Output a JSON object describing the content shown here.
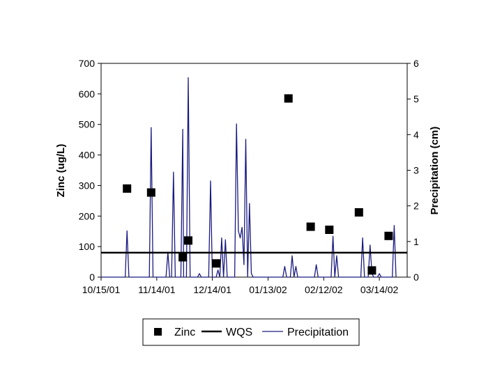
{
  "chart_data": {
    "type": "combo",
    "title": "",
    "x_axis": {
      "type": "date",
      "tick_labels": [
        "10/15/01",
        "11/14/01",
        "12/14/01",
        "01/13/02",
        "02/12/02",
        "03/14/02"
      ],
      "tick_days": [
        0,
        30,
        60,
        90,
        120,
        150
      ],
      "range_days": [
        0,
        165
      ]
    },
    "y_left": {
      "label": "Zinc (ug/L)",
      "min": 0,
      "max": 700,
      "step": 100,
      "ticks": [
        "0",
        "100",
        "200",
        "300",
        "400",
        "500",
        "600",
        "700"
      ]
    },
    "y_right": {
      "label": "Precipitation (cm)",
      "min": 0,
      "max": 6,
      "step": 1,
      "ticks": [
        "0",
        "1",
        "2",
        "3",
        "4",
        "5",
        "6"
      ]
    },
    "series": [
      {
        "name": "Zinc",
        "type": "scatter",
        "axis": "left",
        "color": "#000000",
        "marker": "square",
        "points": [
          [
            14,
            290
          ],
          [
            27,
            277
          ],
          [
            44,
            65
          ],
          [
            47,
            120
          ],
          [
            62,
            45
          ],
          [
            101,
            585
          ],
          [
            113,
            165
          ],
          [
            123,
            155
          ],
          [
            139,
            212
          ],
          [
            146,
            22
          ],
          [
            155,
            135
          ]
        ]
      },
      {
        "name": "WQS",
        "type": "hline",
        "axis": "left",
        "color": "#000000",
        "value": 80
      },
      {
        "name": "Precipitation",
        "type": "line",
        "axis": "right",
        "color": "#1a1a80",
        "points": [
          [
            0,
            0
          ],
          [
            13,
            0
          ],
          [
            14,
            1.3
          ],
          [
            15,
            0
          ],
          [
            26,
            0
          ],
          [
            27,
            4.2
          ],
          [
            28,
            0
          ],
          [
            35,
            0
          ],
          [
            36,
            0.7
          ],
          [
            37,
            0
          ],
          [
            38,
            0
          ],
          [
            39,
            2.95
          ],
          [
            40,
            0
          ],
          [
            43,
            0
          ],
          [
            44,
            4.15
          ],
          [
            44.5,
            0
          ],
          [
            46,
            0
          ],
          [
            47,
            5.6
          ],
          [
            48,
            0
          ],
          [
            52,
            0
          ],
          [
            53,
            0.1
          ],
          [
            54,
            0
          ],
          [
            58,
            0
          ],
          [
            59,
            2.7
          ],
          [
            60,
            0
          ],
          [
            62,
            0
          ],
          [
            63,
            0.2
          ],
          [
            64,
            0
          ],
          [
            65,
            1.1
          ],
          [
            66,
            0
          ],
          [
            67,
            1.05
          ],
          [
            68,
            0
          ],
          [
            72,
            0
          ],
          [
            73,
            4.3
          ],
          [
            74,
            1.3
          ],
          [
            75,
            1.1
          ],
          [
            76,
            1.4
          ],
          [
            77,
            0.35
          ],
          [
            78,
            3.87
          ],
          [
            79,
            0
          ],
          [
            80,
            2.07
          ],
          [
            81,
            0.1
          ],
          [
            82,
            0
          ],
          [
            98,
            0
          ],
          [
            99,
            0.3
          ],
          [
            100,
            0
          ],
          [
            102,
            0
          ],
          [
            103,
            0.6
          ],
          [
            104,
            0
          ],
          [
            105,
            0.3
          ],
          [
            106,
            0
          ],
          [
            115,
            0
          ],
          [
            116,
            0.35
          ],
          [
            117,
            0
          ],
          [
            124,
            0
          ],
          [
            125,
            1.15
          ],
          [
            126,
            0
          ],
          [
            127,
            0.6
          ],
          [
            128,
            0
          ],
          [
            140,
            0
          ],
          [
            141,
            1.1
          ],
          [
            142,
            0
          ],
          [
            144,
            0
          ],
          [
            145,
            0.9
          ],
          [
            146,
            0.1
          ],
          [
            147,
            0
          ],
          [
            149,
            0
          ],
          [
            150,
            0.1
          ],
          [
            151,
            0
          ],
          [
            157,
            0
          ],
          [
            158,
            1.45
          ],
          [
            159,
            0
          ]
        ]
      }
    ],
    "legend": {
      "position": "bottom-center",
      "entries": [
        "Zinc",
        "WQS",
        "Precipitation"
      ]
    },
    "grid": false
  }
}
